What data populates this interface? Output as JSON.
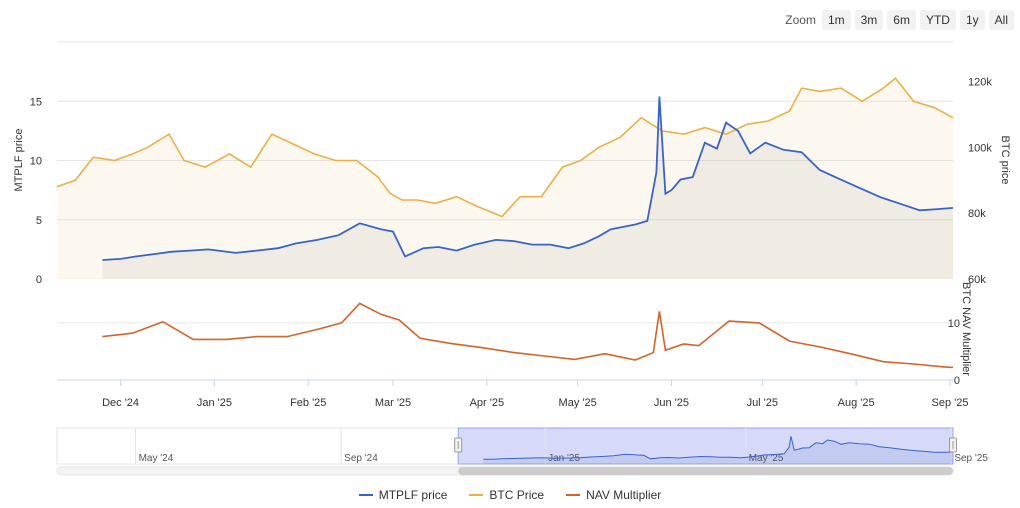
{
  "toolbar": {
    "zoom_label": "Zoom",
    "buttons": [
      "1m",
      "3m",
      "6m",
      "YTD",
      "1y",
      "All"
    ]
  },
  "colors": {
    "mtplf": "#3a63c9",
    "btc": "#e9b04a",
    "nav": "#d2632b",
    "navigator_fill": "#c8cdf5"
  },
  "chart_data": {
    "type": "line",
    "x_ticks": [
      "Dec '24",
      "Jan '25",
      "Feb '25",
      "Mar '25",
      "Apr '25",
      "May '25",
      "Jun '25",
      "Jul '25",
      "Aug '25",
      "Sep '25"
    ],
    "xlim": [
      "2024-11-10",
      "2025-09-02"
    ],
    "left_axis": {
      "label": "MTPLF price",
      "ticks": [
        "0",
        "5",
        "10",
        "15"
      ],
      "ylim": [
        0,
        20
      ]
    },
    "right_axis": {
      "label": "BTC price",
      "ticks": [
        "60k",
        "80k",
        "100k",
        "120k"
      ],
      "ylim": [
        60000,
        132000
      ]
    },
    "nav_axis": {
      "label": "BTC NAV Multiplier",
      "ticks": [
        "0",
        "10"
      ],
      "ylim": [
        0,
        14
      ]
    },
    "series": [
      {
        "name": "MTPLF price",
        "axis": "left",
        "x": [
          "2024-11-25",
          "2024-12-01",
          "2024-12-06",
          "2024-12-12",
          "2024-12-18",
          "2024-12-24",
          "2024-12-30",
          "2025-01-08",
          "2025-01-15",
          "2025-01-22",
          "2025-01-28",
          "2025-02-04",
          "2025-02-11",
          "2025-02-18",
          "2025-02-25",
          "2025-03-01",
          "2025-03-05",
          "2025-03-11",
          "2025-03-16",
          "2025-03-22",
          "2025-03-28",
          "2025-04-04",
          "2025-04-10",
          "2025-04-16",
          "2025-04-22",
          "2025-04-28",
          "2025-05-03",
          "2025-05-08",
          "2025-05-12",
          "2025-05-16",
          "2025-05-20",
          "2025-05-24",
          "2025-05-27",
          "2025-05-28",
          "2025-05-30",
          "2025-06-01",
          "2025-06-04",
          "2025-06-08",
          "2025-06-12",
          "2025-06-16",
          "2025-06-19",
          "2025-06-23",
          "2025-06-27",
          "2025-07-02",
          "2025-07-08",
          "2025-07-14",
          "2025-07-20",
          "2025-07-26",
          "2025-08-02",
          "2025-08-09",
          "2025-08-15",
          "2025-08-22",
          "2025-08-28",
          "2025-09-02"
        ],
        "values": [
          1.6,
          1.7,
          1.9,
          2.1,
          2.3,
          2.4,
          2.5,
          2.2,
          2.4,
          2.6,
          3.0,
          3.3,
          3.7,
          4.7,
          4.2,
          4.0,
          1.9,
          2.6,
          2.7,
          2.4,
          2.9,
          3.3,
          3.2,
          2.9,
          2.9,
          2.6,
          3.0,
          3.6,
          4.2,
          4.4,
          4.6,
          4.9,
          9.0,
          15.4,
          7.2,
          7.5,
          8.4,
          8.6,
          11.5,
          11.0,
          13.2,
          12.5,
          10.6,
          11.5,
          10.9,
          10.7,
          9.2,
          8.5,
          7.7,
          6.9,
          6.4,
          5.8,
          5.9,
          6.0
        ]
      },
      {
        "name": "BTC Price",
        "axis": "right",
        "x": [
          "2024-11-10",
          "2024-11-16",
          "2024-11-22",
          "2024-11-29",
          "2024-12-05",
          "2024-12-10",
          "2024-12-17",
          "2024-12-22",
          "2024-12-29",
          "2025-01-06",
          "2025-01-13",
          "2025-01-20",
          "2025-01-27",
          "2025-02-03",
          "2025-02-10",
          "2025-02-17",
          "2025-02-24",
          "2025-02-28",
          "2025-03-04",
          "2025-03-09",
          "2025-03-15",
          "2025-03-22",
          "2025-03-29",
          "2025-04-06",
          "2025-04-12",
          "2025-04-19",
          "2025-04-26",
          "2025-05-02",
          "2025-05-08",
          "2025-05-15",
          "2025-05-22",
          "2025-05-29",
          "2025-06-05",
          "2025-06-12",
          "2025-06-19",
          "2025-06-26",
          "2025-07-03",
          "2025-07-10",
          "2025-07-14",
          "2025-07-20",
          "2025-07-27",
          "2025-08-03",
          "2025-08-10",
          "2025-08-14",
          "2025-08-20",
          "2025-08-27",
          "2025-09-02"
        ],
        "values": [
          88000,
          90000,
          97000,
          96000,
          98000,
          100000,
          104000,
          96000,
          94000,
          98000,
          94000,
          104000,
          101000,
          98000,
          96000,
          96000,
          91000,
          86000,
          84000,
          84000,
          83000,
          85000,
          82000,
          79000,
          85000,
          85000,
          94000,
          96000,
          100000,
          103000,
          109000,
          105000,
          104000,
          106000,
          104000,
          107000,
          108000,
          111000,
          118000,
          117000,
          118000,
          114000,
          118000,
          121000,
          114000,
          112000,
          109000
        ]
      },
      {
        "name": "NAV Multiplier",
        "axis": "nav",
        "x": [
          "2024-11-25",
          "2024-12-05",
          "2024-12-15",
          "2024-12-25",
          "2025-01-05",
          "2025-01-15",
          "2025-01-25",
          "2025-02-05",
          "2025-02-12",
          "2025-02-18",
          "2025-02-25",
          "2025-03-03",
          "2025-03-10",
          "2025-03-20",
          "2025-03-30",
          "2025-04-10",
          "2025-04-20",
          "2025-04-30",
          "2025-05-10",
          "2025-05-20",
          "2025-05-26",
          "2025-05-28",
          "2025-05-30",
          "2025-06-05",
          "2025-06-10",
          "2025-06-20",
          "2025-06-30",
          "2025-07-10",
          "2025-07-20",
          "2025-07-30",
          "2025-08-10",
          "2025-08-20",
          "2025-08-30",
          "2025-09-02"
        ],
        "values": [
          7.6,
          8.2,
          10.2,
          7.1,
          7.1,
          7.6,
          7.6,
          9.0,
          10.0,
          13.4,
          11.5,
          10.5,
          7.3,
          6.4,
          5.7,
          4.8,
          4.2,
          3.6,
          4.6,
          3.5,
          4.8,
          12.0,
          5.2,
          6.3,
          6.0,
          10.3,
          10.0,
          6.8,
          5.8,
          4.6,
          3.2,
          2.8,
          2.3,
          2.2
        ]
      }
    ],
    "navigator": {
      "ticks": [
        "May '24",
        "Sep '24",
        "Jan '25",
        "May '25",
        "Sep '25"
      ]
    }
  }
}
